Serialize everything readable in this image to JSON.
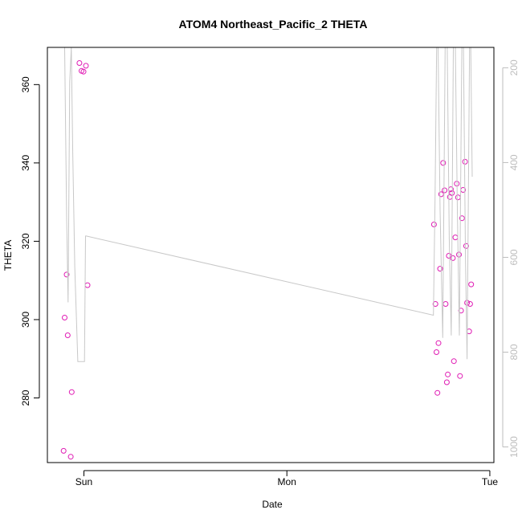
{
  "chart_data": {
    "type": "scatter",
    "title": "ATOM4 Northeast_Pacific_2 THETA",
    "xlabel": "Date",
    "ylabel": "THETA",
    "x_ticks": [
      {
        "label": "Sun",
        "value": 0
      },
      {
        "label": "Mon",
        "value": 1
      },
      {
        "label": "Tue",
        "value": 2
      }
    ],
    "xlim": [
      -0.18,
      2.02
    ],
    "ylim": [
      263.5,
      369.5
    ],
    "y_ticks": [
      280,
      300,
      320,
      340,
      360
    ],
    "right_axis": {
      "ylim": [
        1033,
        157
      ],
      "ticks": [
        200,
        400,
        600,
        800,
        1000
      ]
    },
    "grid": false,
    "legend": "none",
    "colors": {
      "points": "#e01bb4",
      "line": "#c8c8c8",
      "axis": "#000000",
      "right_axis": "#bdbdbd"
    },
    "series": [
      {
        "type": "scatter",
        "axis": "left",
        "points": [
          {
            "x": -0.1,
            "y": 266.5
          },
          {
            "x": -0.095,
            "y": 300.5
          },
          {
            "x": -0.085,
            "y": 311.5
          },
          {
            "x": -0.08,
            "y": 296.0
          },
          {
            "x": -0.065,
            "y": 265.0
          },
          {
            "x": -0.06,
            "y": 281.5
          },
          {
            "x": -0.022,
            "y": 365.5
          },
          {
            "x": -0.012,
            "y": 363.5
          },
          {
            "x": -0.002,
            "y": 363.3
          },
          {
            "x": 0.01,
            "y": 364.8
          },
          {
            "x": 0.018,
            "y": 308.8
          },
          {
            "x": 1.725,
            "y": 324.3
          },
          {
            "x": 1.732,
            "y": 304.0
          },
          {
            "x": 1.737,
            "y": 291.7
          },
          {
            "x": 1.742,
            "y": 281.3
          },
          {
            "x": 1.747,
            "y": 294.0
          },
          {
            "x": 1.755,
            "y": 313.0
          },
          {
            "x": 1.76,
            "y": 332.0
          },
          {
            "x": 1.77,
            "y": 340.0
          },
          {
            "x": 1.777,
            "y": 333.0
          },
          {
            "x": 1.782,
            "y": 304.0
          },
          {
            "x": 1.788,
            "y": 284.0
          },
          {
            "x": 1.793,
            "y": 286.0
          },
          {
            "x": 1.798,
            "y": 316.3
          },
          {
            "x": 1.803,
            "y": 331.3
          },
          {
            "x": 1.808,
            "y": 333.3
          },
          {
            "x": 1.813,
            "y": 332.3
          },
          {
            "x": 1.818,
            "y": 315.7
          },
          {
            "x": 1.823,
            "y": 289.4
          },
          {
            "x": 1.83,
            "y": 321.0
          },
          {
            "x": 1.837,
            "y": 334.7
          },
          {
            "x": 1.843,
            "y": 331.2
          },
          {
            "x": 1.848,
            "y": 316.6
          },
          {
            "x": 1.853,
            "y": 285.6
          },
          {
            "x": 1.858,
            "y": 302.3
          },
          {
            "x": 1.863,
            "y": 325.9
          },
          {
            "x": 1.868,
            "y": 333.1
          },
          {
            "x": 1.878,
            "y": 340.3
          },
          {
            "x": 1.883,
            "y": 318.8
          },
          {
            "x": 1.888,
            "y": 304.3
          },
          {
            "x": 1.898,
            "y": 297.0
          },
          {
            "x": 1.903,
            "y": 304.0
          },
          {
            "x": 1.908,
            "y": 309.0
          }
        ]
      },
      {
        "type": "line",
        "axis": "right",
        "points": [
          {
            "x": -0.095,
            "y": 157
          },
          {
            "x": -0.085,
            "y": 520
          },
          {
            "x": -0.078,
            "y": 695
          },
          {
            "x": -0.07,
            "y": 230
          },
          {
            "x": -0.062,
            "y": 157
          },
          {
            "x": -0.055,
            "y": 380
          },
          {
            "x": -0.045,
            "y": 620
          },
          {
            "x": -0.03,
            "y": 820
          },
          {
            "x": -0.01,
            "y": 820
          },
          {
            "x": -0.005,
            "y": 820
          },
          {
            "x": 0.003,
            "y": 820
          },
          {
            "x": 0.008,
            "y": 555
          },
          {
            "x": 0.012,
            "y": 555
          },
          {
            "x": 1.722,
            "y": 722
          },
          {
            "x": 1.73,
            "y": 480
          },
          {
            "x": 1.738,
            "y": 157
          },
          {
            "x": 1.745,
            "y": 157
          },
          {
            "x": 1.755,
            "y": 500
          },
          {
            "x": 1.768,
            "y": 770
          },
          {
            "x": 1.78,
            "y": 157
          },
          {
            "x": 1.79,
            "y": 157
          },
          {
            "x": 1.8,
            "y": 560
          },
          {
            "x": 1.81,
            "y": 765
          },
          {
            "x": 1.82,
            "y": 157
          },
          {
            "x": 1.83,
            "y": 157
          },
          {
            "x": 1.84,
            "y": 500
          },
          {
            "x": 1.85,
            "y": 765
          },
          {
            "x": 1.862,
            "y": 157
          },
          {
            "x": 1.87,
            "y": 157
          },
          {
            "x": 1.88,
            "y": 600
          },
          {
            "x": 1.888,
            "y": 815
          },
          {
            "x": 1.9,
            "y": 157
          },
          {
            "x": 1.906,
            "y": 157
          },
          {
            "x": 1.913,
            "y": 430
          }
        ]
      }
    ]
  }
}
